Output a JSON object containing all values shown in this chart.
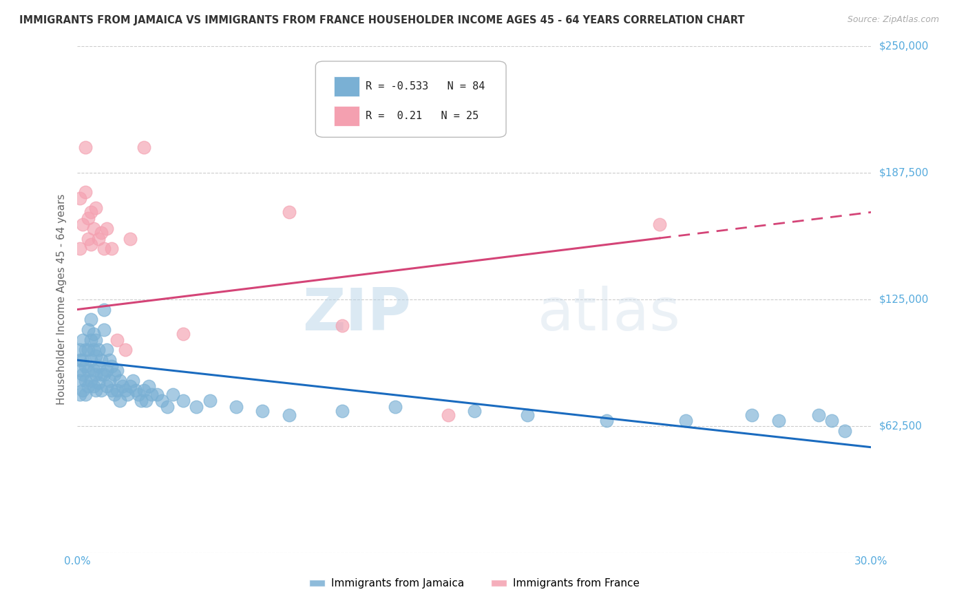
{
  "title": "IMMIGRANTS FROM JAMAICA VS IMMIGRANTS FROM FRANCE HOUSEHOLDER INCOME AGES 45 - 64 YEARS CORRELATION CHART",
  "source": "Source: ZipAtlas.com",
  "ylabel": "Householder Income Ages 45 - 64 years",
  "xlim": [
    0.0,
    0.3
  ],
  "ylim": [
    0,
    250000
  ],
  "yticks": [
    0,
    62500,
    125000,
    187500,
    250000
  ],
  "ytick_labels": [
    "",
    "$62,500",
    "$125,000",
    "$187,500",
    "$250,000"
  ],
  "xticks": [
    0.0,
    0.05,
    0.1,
    0.15,
    0.2,
    0.25,
    0.3
  ],
  "jamaica_color": "#7ab0d4",
  "france_color": "#f4a0b0",
  "jamaica_R": -0.533,
  "jamaica_N": 84,
  "france_R": 0.21,
  "france_N": 25,
  "jamaica_line_color": "#1a6bbf",
  "france_line_color": "#d44477",
  "watermark_zip": "ZIP",
  "watermark_atlas": "atlas",
  "background_color": "#ffffff",
  "grid_color": "#cccccc",
  "title_color": "#333333",
  "axis_label_color": "#666666",
  "tick_label_color": "#55aadd",
  "jamaica_line_y0": 95000,
  "jamaica_line_y1": 52000,
  "france_line_y0": 120000,
  "france_line_y1": 168000,
  "jamaica_x": [
    0.001,
    0.001,
    0.001,
    0.001,
    0.001,
    0.002,
    0.002,
    0.002,
    0.002,
    0.003,
    0.003,
    0.003,
    0.003,
    0.004,
    0.004,
    0.004,
    0.004,
    0.005,
    0.005,
    0.005,
    0.005,
    0.006,
    0.006,
    0.006,
    0.006,
    0.007,
    0.007,
    0.007,
    0.007,
    0.008,
    0.008,
    0.008,
    0.009,
    0.009,
    0.009,
    0.01,
    0.01,
    0.01,
    0.011,
    0.011,
    0.011,
    0.012,
    0.012,
    0.013,
    0.013,
    0.014,
    0.014,
    0.015,
    0.015,
    0.016,
    0.016,
    0.017,
    0.018,
    0.019,
    0.02,
    0.021,
    0.022,
    0.023,
    0.024,
    0.025,
    0.026,
    0.027,
    0.028,
    0.03,
    0.032,
    0.034,
    0.036,
    0.04,
    0.045,
    0.05,
    0.06,
    0.07,
    0.08,
    0.1,
    0.12,
    0.15,
    0.17,
    0.2,
    0.23,
    0.255,
    0.265,
    0.28,
    0.285,
    0.29
  ],
  "jamaica_y": [
    100000,
    95000,
    90000,
    85000,
    78000,
    105000,
    95000,
    88000,
    80000,
    100000,
    92000,
    85000,
    78000,
    110000,
    100000,
    90000,
    82000,
    115000,
    105000,
    95000,
    85000,
    108000,
    100000,
    90000,
    82000,
    105000,
    97000,
    88000,
    80000,
    100000,
    92000,
    84000,
    95000,
    88000,
    80000,
    120000,
    110000,
    88000,
    100000,
    90000,
    82000,
    95000,
    85000,
    92000,
    80000,
    88000,
    78000,
    90000,
    80000,
    85000,
    75000,
    82000,
    80000,
    78000,
    82000,
    85000,
    80000,
    78000,
    75000,
    80000,
    75000,
    82000,
    78000,
    78000,
    75000,
    72000,
    78000,
    75000,
    72000,
    75000,
    72000,
    70000,
    68000,
    70000,
    72000,
    70000,
    68000,
    65000,
    65000,
    68000,
    65000,
    68000,
    65000,
    60000
  ],
  "france_x": [
    0.001,
    0.001,
    0.002,
    0.003,
    0.003,
    0.004,
    0.004,
    0.005,
    0.005,
    0.006,
    0.007,
    0.008,
    0.009,
    0.01,
    0.011,
    0.013,
    0.015,
    0.018,
    0.02,
    0.025,
    0.04,
    0.08,
    0.1,
    0.14,
    0.22
  ],
  "france_y": [
    175000,
    150000,
    162000,
    200000,
    178000,
    165000,
    155000,
    168000,
    152000,
    160000,
    170000,
    155000,
    158000,
    150000,
    160000,
    150000,
    105000,
    100000,
    155000,
    200000,
    108000,
    168000,
    112000,
    68000,
    162000
  ]
}
